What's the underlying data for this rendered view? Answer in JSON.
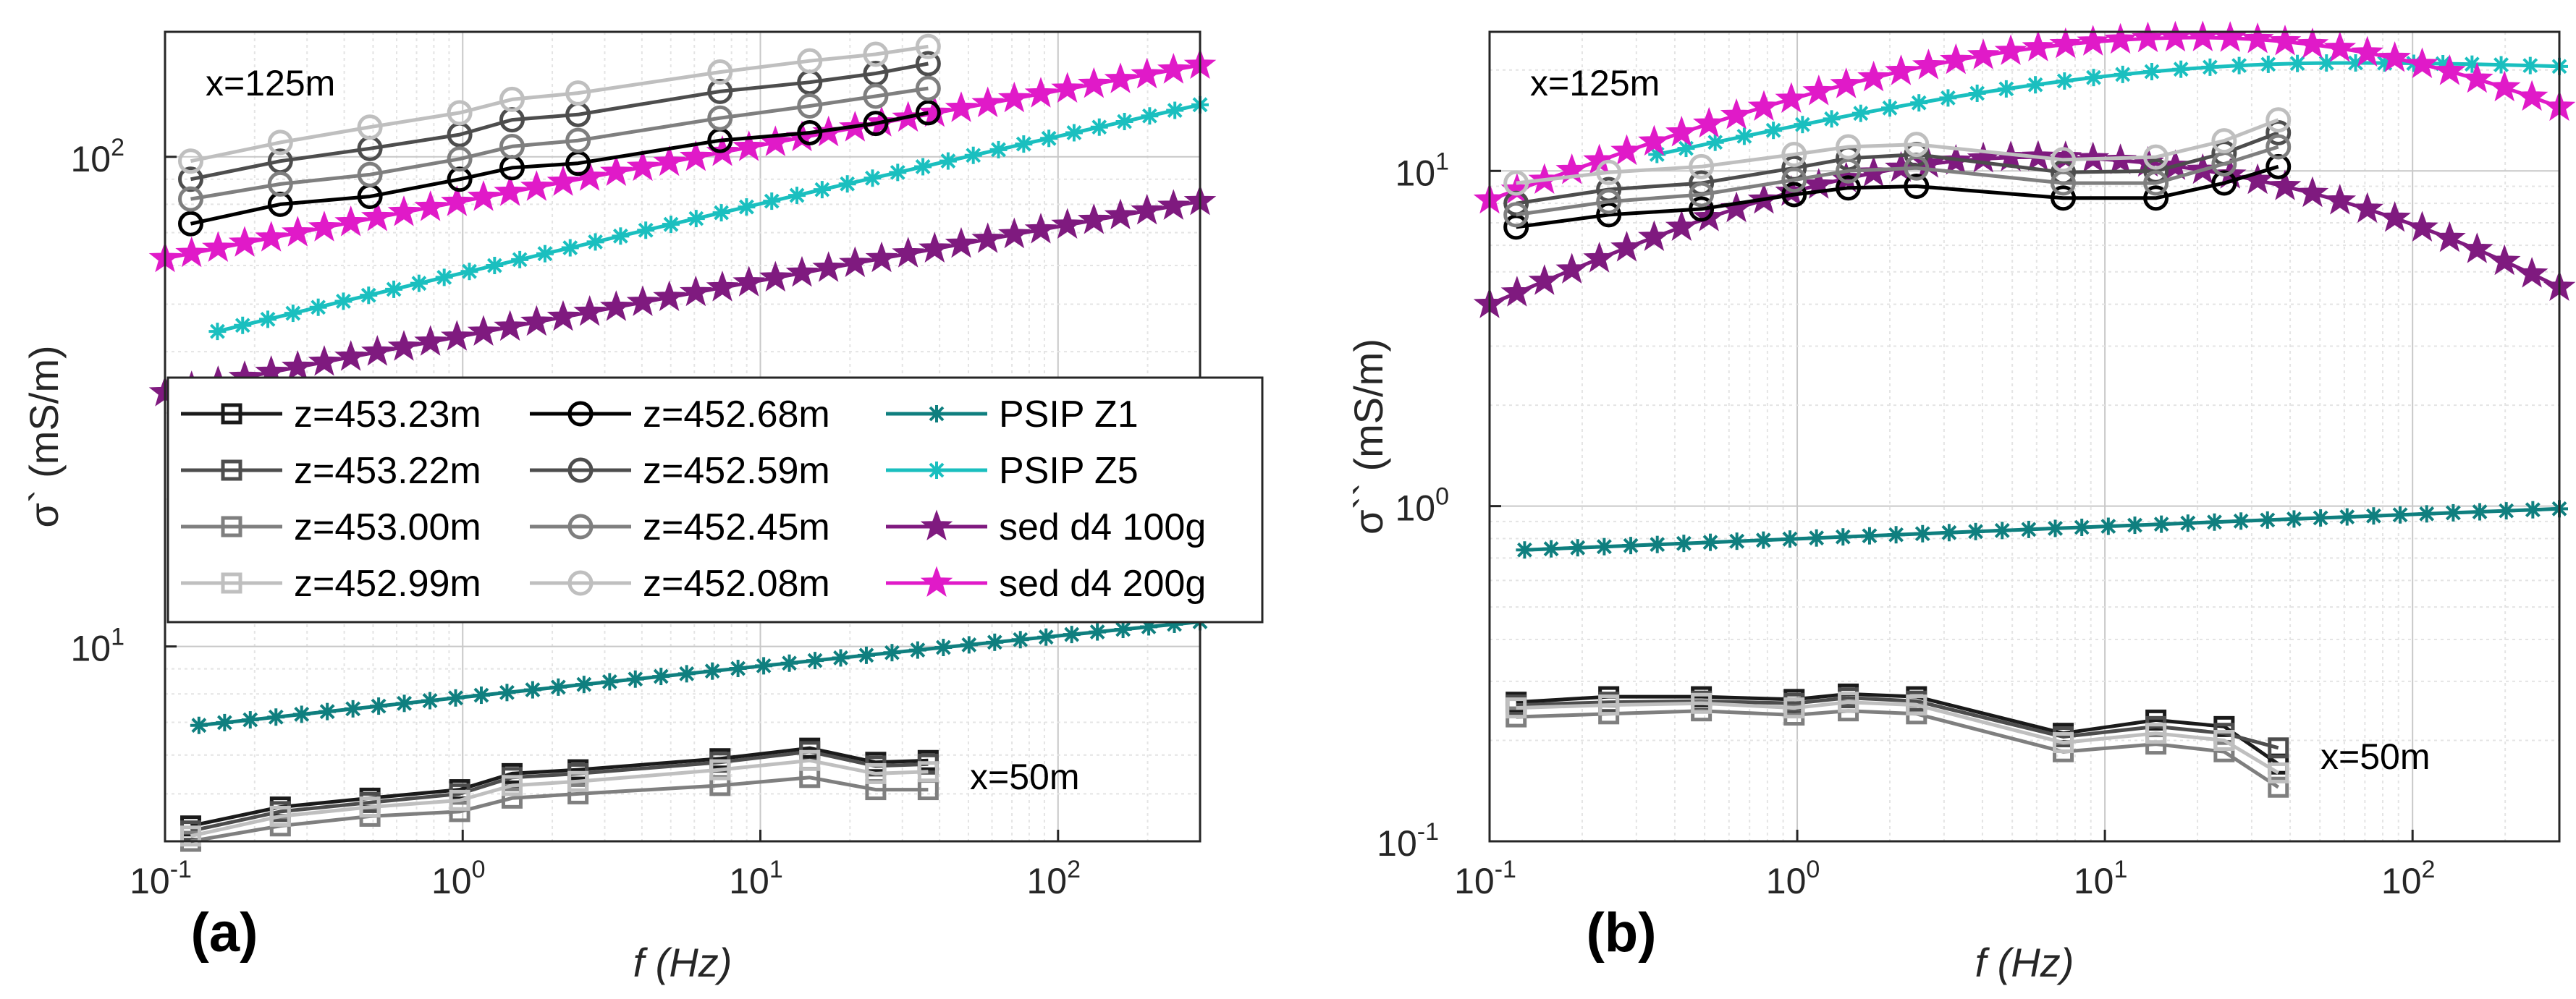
{
  "figure": {
    "panel_a_tag": "(a)",
    "panel_b_tag": "(b)"
  },
  "legend": {
    "entries": [
      {
        "label": "z=453.23m",
        "color": "#1a1a1a",
        "marker": "square"
      },
      {
        "label": "z=453.22m",
        "color": "#4d4d4d",
        "marker": "square"
      },
      {
        "label": "z=453.00m",
        "color": "#7f7f7f",
        "marker": "square"
      },
      {
        "label": "z=452.99m",
        "color": "#bfbfbf",
        "marker": "square"
      },
      {
        "label": "z=452.68m",
        "color": "#000000",
        "marker": "circle"
      },
      {
        "label": "z=452.59m",
        "color": "#4d4d4d",
        "marker": "circle"
      },
      {
        "label": "z=452.45m",
        "color": "#7f7f7f",
        "marker": "circle"
      },
      {
        "label": "z=452.08m",
        "color": "#bfbfbf",
        "marker": "circle"
      },
      {
        "label": "PSIP Z1",
        "color": "#0f7f7f",
        "marker": "asterisk"
      },
      {
        "label": "PSIP Z5",
        "color": "#1abfbf",
        "marker": "asterisk"
      },
      {
        "label": "sed d4 100g",
        "color": "#7f1a7f",
        "marker": "star"
      },
      {
        "label": "sed d4 200g",
        "color": "#e01ac8",
        "marker": "star"
      }
    ]
  },
  "chart_data": [
    {
      "type": "line",
      "panel": "(a)",
      "xscale": "log",
      "yscale": "log",
      "xlim": [
        0.1,
        300
      ],
      "ylim": [
        4.0,
        180
      ],
      "xlabel": "f (Hz)",
      "ylabel": "σ` (mS/m)",
      "xticks": [
        {
          "v": 0.1,
          "b": "10",
          "e": "-1"
        },
        {
          "v": 1,
          "b": "10",
          "e": "0"
        },
        {
          "v": 10,
          "b": "10",
          "e": "1"
        },
        {
          "v": 100,
          "b": "10",
          "e": "2"
        }
      ],
      "yticks": [
        {
          "v": 10,
          "b": "10",
          "e": "1"
        },
        {
          "v": 100,
          "b": "10",
          "e": "2"
        }
      ],
      "annotations": [
        {
          "text": "x=125m",
          "pos": "top-left"
        },
        {
          "text": "x=50m",
          "pos": "bottom-right"
        }
      ],
      "legend_position": "center-left",
      "x": [
        0.122,
        0.244,
        0.488,
        0.977,
        1.465,
        2.441,
        7.32,
        14.65,
        24.41,
        36.62
      ],
      "series": [
        {
          "name": "z=453.23m",
          "values": [
            4.3,
            4.7,
            4.9,
            5.1,
            5.5,
            5.6,
            5.9,
            6.2,
            5.8,
            5.85
          ]
        },
        {
          "name": "z=453.22m",
          "values": [
            4.2,
            4.6,
            4.8,
            5.0,
            5.4,
            5.5,
            5.8,
            6.1,
            5.7,
            5.75
          ]
        },
        {
          "name": "z=453.00m",
          "values": [
            4.0,
            4.3,
            4.5,
            4.6,
            4.9,
            5.0,
            5.2,
            5.4,
            5.1,
            5.1
          ]
        },
        {
          "name": "z=452.99m",
          "values": [
            4.1,
            4.5,
            4.7,
            4.85,
            5.2,
            5.3,
            5.6,
            5.85,
            5.5,
            5.55
          ]
        },
        {
          "name": "z=452.68m",
          "values": [
            73,
            80,
            83,
            90,
            95,
            97,
            108,
            112,
            117,
            123
          ]
        },
        {
          "name": "z=452.59m",
          "values": [
            90,
            98,
            104,
            111,
            119,
            122,
            136,
            142,
            148,
            155
          ]
        },
        {
          "name": "z=452.45m",
          "values": [
            82,
            88,
            92,
            99,
            105,
            108,
            120,
            127,
            133,
            138
          ]
        },
        {
          "name": "z=452.08m",
          "values": [
            98,
            107,
            115,
            123,
            131,
            135,
            149,
            157,
            162,
            168
          ]
        },
        {
          "name": "PSIP Z1",
          "x_range": [
            0.13,
            300
          ],
          "values_range": [
            6.9,
            11.0
          ],
          "n": 40
        },
        {
          "name": "PSIP Z5",
          "x_range": [
            0.15,
            300
          ],
          "values_range": [
            44,
            122
          ],
          "n": 40
        },
        {
          "name": "sed d4 100g",
          "x_range": [
            0.1,
            300
          ],
          "values_range": [
            33,
            78
          ],
          "n": 40
        },
        {
          "name": "sed d4 200g",
          "x_range": [
            0.1,
            300
          ],
          "values_range": [
            62,
            148
          ],
          "n": 40
        }
      ]
    },
    {
      "type": "line",
      "panel": "(b)",
      "xscale": "log",
      "yscale": "log",
      "xlim": [
        0.1,
        300
      ],
      "ylim": [
        0.1,
        26
      ],
      "xlabel": "f (Hz)",
      "ylabel": "σ`` (mS/m)",
      "xticks": [
        {
          "v": 0.1,
          "b": "10",
          "e": "-1"
        },
        {
          "v": 1,
          "b": "10",
          "e": "0"
        },
        {
          "v": 10,
          "b": "10",
          "e": "1"
        },
        {
          "v": 100,
          "b": "10",
          "e": "2"
        }
      ],
      "yticks": [
        {
          "v": 0.1,
          "b": "10",
          "e": "-1"
        },
        {
          "v": 1,
          "b": "10",
          "e": "0"
        },
        {
          "v": 10,
          "b": "10",
          "e": "1"
        }
      ],
      "annotations": [
        {
          "text": "x=125m",
          "pos": "top-left"
        },
        {
          "text": "x=50m",
          "pos": "bottom-right"
        }
      ],
      "x": [
        0.122,
        0.244,
        0.488,
        0.977,
        1.465,
        2.441,
        7.32,
        14.65,
        24.41,
        36.62
      ],
      "series": [
        {
          "name": "z=453.23m",
          "values": [
            0.26,
            0.27,
            0.27,
            0.265,
            0.275,
            0.27,
            0.21,
            0.23,
            0.22,
            0.17
          ]
        },
        {
          "name": "z=453.22m",
          "values": [
            0.255,
            0.26,
            0.262,
            0.258,
            0.268,
            0.262,
            0.205,
            0.22,
            0.21,
            0.19
          ]
        },
        {
          "name": "z=453.00m",
          "values": [
            0.235,
            0.24,
            0.245,
            0.238,
            0.245,
            0.24,
            0.185,
            0.195,
            0.185,
            0.145
          ]
        },
        {
          "name": "z=452.99m",
          "values": [
            0.25,
            0.255,
            0.258,
            0.25,
            0.26,
            0.255,
            0.197,
            0.21,
            0.2,
            0.16
          ]
        },
        {
          "name": "z=452.68m",
          "values": [
            6.8,
            7.4,
            7.7,
            8.5,
            8.9,
            9.0,
            8.3,
            8.3,
            9.2,
            10.3
          ]
        },
        {
          "name": "z=452.59m",
          "values": [
            8.0,
            8.8,
            9.2,
            10.2,
            10.9,
            11.2,
            9.9,
            10.0,
            11.3,
            13.0
          ]
        },
        {
          "name": "z=452.45m",
          "values": [
            7.4,
            8.1,
            8.5,
            9.4,
            10.0,
            10.2,
            9.2,
            9.2,
            10.5,
            11.8
          ]
        },
        {
          "name": "z=452.08m",
          "values": [
            9.2,
            9.9,
            10.3,
            11.2,
            11.8,
            12.0,
            10.8,
            11.0,
            12.3,
            14.2
          ]
        },
        {
          "name": "PSIP Z1",
          "x_range": [
            0.13,
            300
          ],
          "values_range": [
            0.74,
            0.97
          ],
          "n": 40
        },
        {
          "name": "PSIP Z5",
          "x_range": [
            0.35,
            300
          ],
          "values": "peak",
          "lo": 11.2,
          "peak": 21,
          "peak_x": 60,
          "end": 20.5,
          "n": 32
        },
        {
          "name": "sed d4 100g",
          "x_range": [
            0.1,
            300
          ],
          "values": "peak",
          "lo": 4.0,
          "peak": 11,
          "peak_x": 6,
          "end": 4.5,
          "n": 40
        },
        {
          "name": "sed d4 200g",
          "x_range": [
            0.1,
            300
          ],
          "values": "peak",
          "lo": 8.2,
          "peak": 25,
          "peak_x": 20,
          "end": 15.5,
          "n": 40
        }
      ]
    }
  ]
}
